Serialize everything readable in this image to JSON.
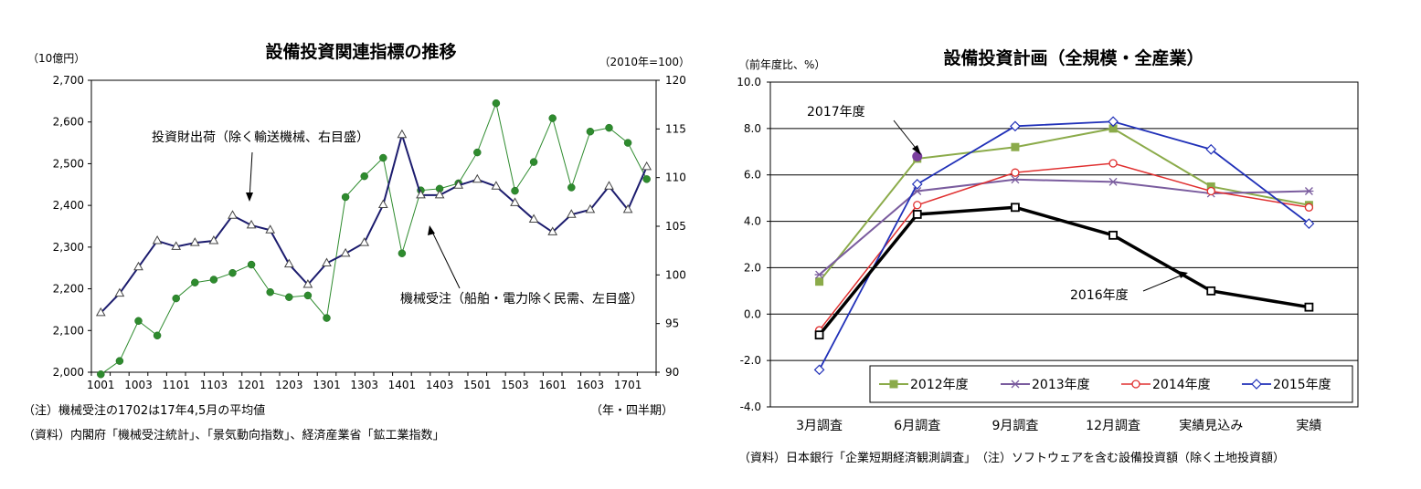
{
  "chart_data": [
    {
      "type": "line",
      "title": "設備投資関連指標の推移",
      "left_unit": "（10億円）",
      "right_unit": "（2010年=100）",
      "x_unit": "（年・四半期）",
      "note": "（注）機械受注の1702は17年4,5月の平均値",
      "source": "（資料）内閣府「機械受注統計」、「景気動向指数」、経済産業省「鉱工業指数」",
      "x": [
        "1001",
        "1002",
        "1003",
        "1004",
        "1101",
        "1102",
        "1103",
        "1104",
        "1201",
        "1202",
        "1203",
        "1204",
        "1301",
        "1302",
        "1303",
        "1304",
        "1401",
        "1402",
        "1403",
        "1404",
        "1501",
        "1502",
        "1503",
        "1504",
        "1601",
        "1602",
        "1603",
        "1604",
        "1701",
        "1702"
      ],
      "x_tick_labels": [
        "1001",
        "1003",
        "1101",
        "1103",
        "1201",
        "1203",
        "1301",
        "1303",
        "1401",
        "1403",
        "1501",
        "1503",
        "1601",
        "1603",
        "1701"
      ],
      "ylim_left": [
        2000,
        2700
      ],
      "yticks_left": [
        "2,000",
        "2,100",
        "2,200",
        "2,300",
        "2,400",
        "2,500",
        "2,600",
        "2,700"
      ],
      "ylim_right": [
        90,
        120
      ],
      "yticks_right": [
        "90",
        "95",
        "100",
        "105",
        "110",
        "115",
        "120"
      ],
      "grid": false,
      "series": [
        {
          "name": "機械受注（船舶・電力除く民需、左目盛）",
          "axis": "left",
          "color": "#2e8b2e",
          "values": [
            1995,
            2027,
            2123,
            2088,
            2177,
            2215,
            2222,
            2238,
            2258,
            2192,
            2180,
            2184,
            2130,
            2420,
            2470,
            2514,
            2285,
            2436,
            2440,
            2453,
            2527,
            2645,
            2435,
            2504,
            2609,
            2443,
            2577,
            2586,
            2550,
            2463
          ]
        },
        {
          "name": "投資財出荷（除く輸送機械、右目盛）",
          "axis": "right",
          "color": "#1c1c6e",
          "values": [
            96.1,
            98.1,
            100.8,
            103.5,
            102.9,
            103.3,
            103.5,
            106.1,
            105.1,
            104.6,
            101.1,
            99.0,
            101.2,
            102.2,
            103.3,
            107.2,
            114.4,
            108.2,
            108.2,
            109.2,
            109.8,
            109.1,
            107.4,
            105.7,
            104.4,
            106.2,
            106.7,
            109.1,
            106.7,
            111.1
          ]
        }
      ]
    },
    {
      "type": "line",
      "title": "設備投資計画（全規模・全産業）",
      "y_unit": "（前年度比、%）",
      "source": "（資料）日本銀行「企業短期経済観測調査」　（注）ソフトウェアを含む設備投資額（除く土地投資額）",
      "categories": [
        "3月調査",
        "6月調査",
        "9月調査",
        "12月調査",
        "実績見込み",
        "実績"
      ],
      "ylim": [
        -4.0,
        10.0
      ],
      "yticks": [
        "-4.0",
        "-2.0",
        "0.0",
        "2.0",
        "4.0",
        "6.0",
        "8.0",
        "10.0"
      ],
      "grid": true,
      "legend": "bottom-right",
      "series": [
        {
          "name": "2012年度",
          "color": "#8bab4a",
          "values": [
            1.4,
            6.7,
            7.2,
            8.0,
            5.5,
            4.7
          ]
        },
        {
          "name": "2013年度",
          "color": "#7a5c9e",
          "values": [
            1.7,
            5.3,
            5.8,
            5.7,
            5.2,
            5.3
          ]
        },
        {
          "name": "2014年度",
          "color": "#e03030",
          "values": [
            -0.7,
            4.7,
            6.1,
            6.5,
            5.3,
            4.6
          ]
        },
        {
          "name": "2015年度",
          "color": "#2030b8",
          "values": [
            -2.4,
            5.6,
            8.1,
            8.3,
            7.1,
            3.9
          ]
        },
        {
          "name": "2016年度",
          "color": "#000000",
          "values": [
            -0.9,
            4.3,
            4.6,
            3.4,
            1.0,
            0.3
          ]
        },
        {
          "name": "2017年度",
          "color": "#7a3f9e",
          "values": [
            null,
            6.8,
            null,
            null,
            null,
            null
          ]
        }
      ],
      "annotations": [
        "2017年度",
        "2016年度"
      ]
    }
  ]
}
